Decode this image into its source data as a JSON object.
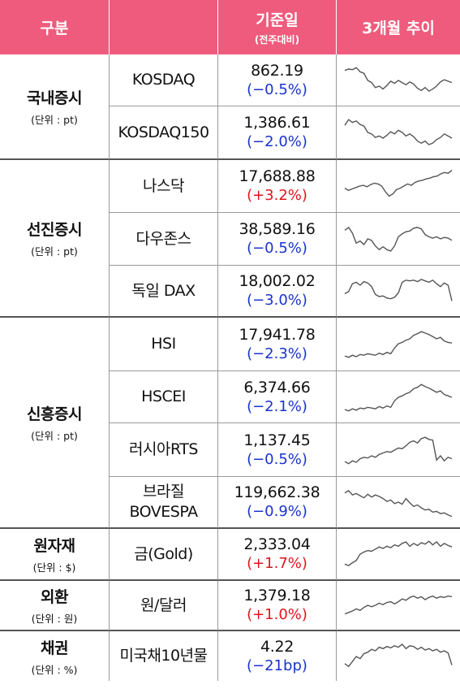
{
  "header": {
    "category": "구분",
    "base_date": "기준일",
    "base_date_sub": "(전주대비)",
    "trend": "3개월 추이"
  },
  "groups": [
    {
      "label": "국내증시",
      "unit": "(단위 : pt)"
    },
    {
      "label": "선진증시",
      "unit": "(단위 : pt)"
    },
    {
      "label": "신흥증시",
      "unit": "(단위 : pt)"
    },
    {
      "label": "원자재",
      "unit": "(단위 : $)"
    },
    {
      "label": "외환",
      "unit": "(단위 : 원)"
    },
    {
      "label": "채권",
      "unit": "(단위 : %)"
    }
  ],
  "rows": [
    {
      "name": "KOSDAQ",
      "value": "862.19",
      "change": "(−0.5%)",
      "direction": "down",
      "trend": [
        0.78,
        0.82,
        0.8,
        0.86,
        0.74,
        0.7,
        0.5,
        0.44,
        0.3,
        0.34,
        0.26,
        0.36,
        0.48,
        0.42,
        0.5,
        0.44,
        0.38,
        0.46,
        0.4,
        0.28,
        0.22,
        0.3,
        0.2,
        0.26,
        0.34,
        0.46,
        0.52,
        0.48,
        0.44
      ]
    },
    {
      "name": "KOSDAQ150",
      "value": "1,386.61",
      "change": "(−2.0%)",
      "direction": "down",
      "trend": [
        0.7,
        0.86,
        0.78,
        0.82,
        0.72,
        0.68,
        0.5,
        0.46,
        0.36,
        0.4,
        0.34,
        0.42,
        0.52,
        0.46,
        0.56,
        0.5,
        0.4,
        0.46,
        0.38,
        0.26,
        0.2,
        0.26,
        0.16,
        0.2,
        0.3,
        0.36,
        0.46,
        0.4,
        0.34
      ]
    },
    {
      "name": "나스닥",
      "value": "17,688.88",
      "change": "(+3.2%)",
      "direction": "up",
      "trend": [
        0.44,
        0.38,
        0.42,
        0.46,
        0.5,
        0.52,
        0.48,
        0.54,
        0.58,
        0.56,
        0.5,
        0.34,
        0.22,
        0.28,
        0.4,
        0.44,
        0.5,
        0.56,
        0.52,
        0.6,
        0.64,
        0.66,
        0.7,
        0.72,
        0.76,
        0.78,
        0.84,
        0.88,
        0.86,
        0.94
      ]
    },
    {
      "name": "다우존스",
      "value": "38,589.16",
      "change": "(−0.5%)",
      "direction": "down",
      "trend": [
        0.74,
        0.82,
        0.66,
        0.38,
        0.44,
        0.34,
        0.5,
        0.46,
        0.3,
        0.2,
        0.28,
        0.2,
        0.16,
        0.3,
        0.56,
        0.64,
        0.7,
        0.72,
        0.8,
        0.82,
        0.78,
        0.62,
        0.56,
        0.52,
        0.56,
        0.5,
        0.54,
        0.52,
        0.46
      ]
    },
    {
      "name": "독일 DAX",
      "value": "18,002.02",
      "change": "(−3.0%)",
      "direction": "down",
      "trend": [
        0.42,
        0.48,
        0.7,
        0.74,
        0.66,
        0.76,
        0.72,
        0.62,
        0.4,
        0.34,
        0.36,
        0.3,
        0.28,
        0.32,
        0.44,
        0.74,
        0.8,
        0.78,
        0.8,
        0.76,
        0.82,
        0.78,
        0.74,
        0.8,
        0.7,
        0.62,
        0.72,
        0.66,
        0.22
      ]
    },
    {
      "name": "HSI",
      "value": "17,941.78",
      "change": "(−2.3%)",
      "direction": "down",
      "trend": [
        0.18,
        0.14,
        0.2,
        0.16,
        0.22,
        0.2,
        0.24,
        0.22,
        0.2,
        0.26,
        0.22,
        0.28,
        0.24,
        0.4,
        0.52,
        0.56,
        0.62,
        0.66,
        0.76,
        0.8,
        0.86,
        0.82,
        0.78,
        0.72,
        0.66,
        0.7,
        0.6,
        0.56,
        0.54
      ]
    },
    {
      "name": "HSCEI",
      "value": "6,374.66",
      "change": "(−2.1%)",
      "direction": "down",
      "trend": [
        0.16,
        0.12,
        0.18,
        0.14,
        0.2,
        0.18,
        0.22,
        0.2,
        0.18,
        0.24,
        0.2,
        0.26,
        0.22,
        0.4,
        0.5,
        0.54,
        0.6,
        0.64,
        0.74,
        0.78,
        0.86,
        0.8,
        0.76,
        0.7,
        0.64,
        0.68,
        0.58,
        0.54,
        0.5
      ]
    },
    {
      "name": "러시아RTS",
      "value": "1,137.45",
      "change": "(−0.5%)",
      "direction": "down",
      "trend": [
        0.18,
        0.12,
        0.2,
        0.16,
        0.26,
        0.3,
        0.28,
        0.34,
        0.3,
        0.38,
        0.42,
        0.46,
        0.44,
        0.5,
        0.56,
        0.54,
        0.62,
        0.72,
        0.76,
        0.7,
        0.82,
        0.86,
        0.8,
        0.78,
        0.22,
        0.34,
        0.2,
        0.3,
        0.26
      ]
    },
    {
      "name": "브라질\nBOVESPA",
      "value": "119,662.38",
      "change": "(−0.9%)",
      "direction": "down",
      "trend": [
        0.76,
        0.82,
        0.7,
        0.74,
        0.68,
        0.62,
        0.72,
        0.64,
        0.7,
        0.66,
        0.6,
        0.52,
        0.56,
        0.46,
        0.5,
        0.44,
        0.6,
        0.48,
        0.38,
        0.42,
        0.34,
        0.28,
        0.3,
        0.22,
        0.24,
        0.18,
        0.2,
        0.14,
        0.1
      ]
    },
    {
      "name": "금(Gold)",
      "value": "2,333.04",
      "change": "(+1.7%)",
      "direction": "up",
      "trend": [
        0.22,
        0.18,
        0.26,
        0.32,
        0.5,
        0.56,
        0.6,
        0.58,
        0.64,
        0.7,
        0.66,
        0.72,
        0.68,
        0.76,
        0.72,
        0.8,
        0.84,
        0.72,
        0.8,
        0.74,
        0.82,
        0.78,
        0.86,
        0.76,
        0.84,
        0.72,
        0.8,
        0.74,
        0.7
      ]
    },
    {
      "name": "원/달러",
      "value": "1,379.18",
      "change": "(+1.0%)",
      "direction": "up",
      "trend": [
        0.26,
        0.3,
        0.34,
        0.4,
        0.36,
        0.44,
        0.5,
        0.46,
        0.5,
        0.56,
        0.52,
        0.58,
        0.6,
        0.54,
        0.6,
        0.68,
        0.64,
        0.72,
        0.76,
        0.7,
        0.74,
        0.66,
        0.72,
        0.76,
        0.7,
        0.74,
        0.72,
        0.76,
        0.74
      ]
    },
    {
      "name": "미국채10년물",
      "value": "4.22",
      "change": "(−21bp)",
      "direction": "down",
      "trend": [
        0.3,
        0.22,
        0.36,
        0.5,
        0.44,
        0.58,
        0.62,
        0.7,
        0.66,
        0.76,
        0.72,
        0.78,
        0.74,
        0.8,
        0.76,
        0.84,
        0.72,
        0.8,
        0.78,
        0.7,
        0.76,
        0.68,
        0.72,
        0.66,
        0.7,
        0.62,
        0.66,
        0.6,
        0.26
      ]
    }
  ],
  "colors": {
    "header_bg": "#ef5b7c",
    "down": "#1a33cc",
    "up": "#e0141e",
    "line": "#555555"
  }
}
